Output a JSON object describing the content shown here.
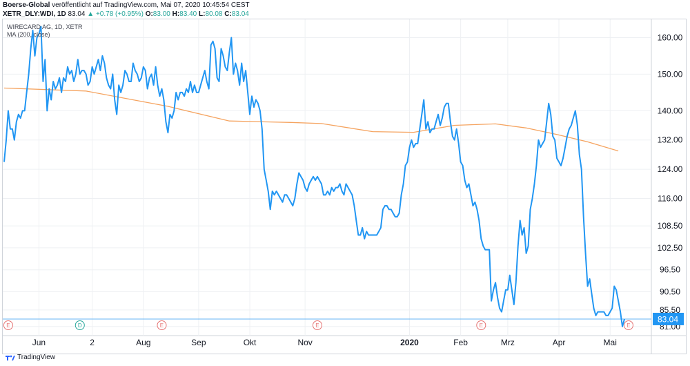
{
  "header": {
    "publisher": "Boerse-Global",
    "published_text": "veröffentlicht auf TradingView.com, Mai 07, 2020 10:45:54 CEST",
    "symbol_line": "XETR_DLY:WDI, 1D",
    "last": "83.04",
    "change_arrow": "▲",
    "change": "+0.78 (+0.95%)",
    "o_label": "O:",
    "o_value": "83.00",
    "h_label": "H:",
    "h_value": "83.40",
    "l_label": "L:",
    "l_value": "80.08",
    "c_label": "C:",
    "c_value": "83.04"
  },
  "footer": {
    "brand": "TradingView"
  },
  "chart_data": {
    "type": "line",
    "title": "WIRECARD AG, 1D, XETR",
    "indicator_label": "MA (200, close)",
    "ylim": [
      78.5,
      165
    ],
    "y_ticks": [
      160,
      150,
      140,
      132,
      124,
      116,
      108.5,
      102.5,
      96.5,
      90.5,
      85.5,
      81
    ],
    "y_tick_labels": [
      "160.00",
      "150.00",
      "140.00",
      "132.00",
      "124.00",
      "116.00",
      "108.50",
      "102.50",
      "96.50",
      "90.50",
      "85.50",
      "81.00"
    ],
    "x_tick_labels": [
      "Jun",
      "2",
      "Aug",
      "Sep",
      "Okt",
      "Nov",
      "2020",
      "Feb",
      "Mrz",
      "Apr",
      "Mai"
    ],
    "x_tick_index": [
      17,
      43,
      68,
      95,
      120,
      147,
      198,
      223,
      246,
      271,
      296
    ],
    "last_price_label": "83.04",
    "colors": {
      "price": "#2196f3",
      "ma": "#f5a35f",
      "last_line": "#64b5f6",
      "event": "#e57373",
      "dividend": "#26a69a",
      "grid": "#eef0f3"
    },
    "events": [
      {
        "index": 2,
        "label": "E",
        "kind": "earnings"
      },
      {
        "index": 37,
        "label": "D",
        "kind": "dividend"
      },
      {
        "index": 77,
        "label": "E",
        "kind": "earnings"
      },
      {
        "index": 153,
        "label": "E",
        "kind": "earnings"
      },
      {
        "index": 233,
        "label": "E",
        "kind": "earnings"
      },
      {
        "index": 305,
        "label": "E",
        "kind": "earnings"
      }
    ],
    "series": [
      {
        "name": "WDI",
        "values": [
          126,
          132,
          140,
          135,
          135,
          132,
          137,
          139,
          138,
          140,
          140,
          145,
          150,
          157,
          162,
          155,
          160,
          161,
          163,
          148,
          154,
          140,
          146,
          143,
          148,
          146,
          147,
          149,
          145,
          149,
          148,
          152,
          150,
          151,
          148,
          150,
          154,
          150,
          151,
          151,
          150,
          147,
          148,
          152,
          150,
          152,
          154,
          151,
          155,
          153,
          149,
          147,
          146,
          150,
          143,
          139,
          147,
          145,
          147,
          151,
          150,
          148,
          148,
          153,
          151,
          150,
          148,
          149,
          152,
          151,
          146,
          149,
          150,
          147,
          152,
          147,
          144,
          146,
          143,
          137,
          134,
          139,
          138,
          140,
          145,
          143,
          145,
          145,
          144,
          146,
          145,
          148,
          145,
          147,
          145,
          145,
          147,
          149,
          151,
          148,
          146,
          158,
          159,
          157,
          149,
          148,
          157,
          155,
          152,
          151,
          156,
          160,
          150,
          153,
          151,
          147,
          153,
          148,
          151,
          145,
          139,
          144,
          141,
          143,
          142,
          140,
          135,
          124,
          121,
          118,
          113,
          118,
          117,
          118,
          117,
          116,
          115,
          117,
          117,
          116,
          115,
          114,
          116,
          120,
          123,
          122,
          121,
          119,
          118,
          120,
          121,
          122,
          121,
          122,
          121,
          120,
          117,
          117,
          118,
          117,
          119,
          118,
          119,
          119,
          120,
          118,
          117,
          120,
          119,
          118,
          117,
          114,
          110,
          106,
          106,
          108,
          105,
          107,
          106,
          106,
          106,
          106,
          106,
          107,
          108,
          113,
          114,
          114,
          113,
          113,
          112,
          111,
          111,
          112,
          117,
          120,
          125,
          126,
          130,
          132,
          130,
          131,
          131,
          135,
          139,
          143,
          135,
          137,
          134,
          135,
          135,
          137,
          139,
          136,
          138,
          141,
          142,
          142,
          137,
          133,
          132,
          135,
          131,
          126,
          125,
          121,
          119,
          120,
          117,
          114,
          115,
          113,
          110,
          105,
          103,
          102,
          102,
          102,
          88,
          91,
          93,
          89,
          86,
          85,
          88,
          91,
          91,
          95,
          91,
          87,
          93,
          103,
          110,
          106,
          108,
          101,
          103,
          113,
          116,
          120,
          125,
          132,
          130,
          131,
          132,
          137,
          142,
          139,
          133,
          132,
          127,
          126,
          125,
          127,
          130,
          133,
          135,
          136,
          138,
          140,
          136,
          128,
          124,
          111,
          101,
          92,
          94,
          90,
          86,
          84,
          85,
          85,
          85,
          85,
          84,
          84,
          85,
          86,
          92,
          91,
          88,
          85,
          81,
          83.04
        ]
      },
      {
        "name": "MA (200, close)",
        "x_index": [
          0,
          40,
          80,
          110,
          140,
          155,
          180,
          200,
          220,
          240,
          255,
          270,
          285,
          300
        ],
        "values": [
          146.2,
          145.4,
          141.2,
          137.2,
          136.8,
          136.5,
          134.3,
          134.1,
          136,
          136.4,
          135.3,
          133.5,
          131.5,
          129.0
        ]
      }
    ]
  }
}
